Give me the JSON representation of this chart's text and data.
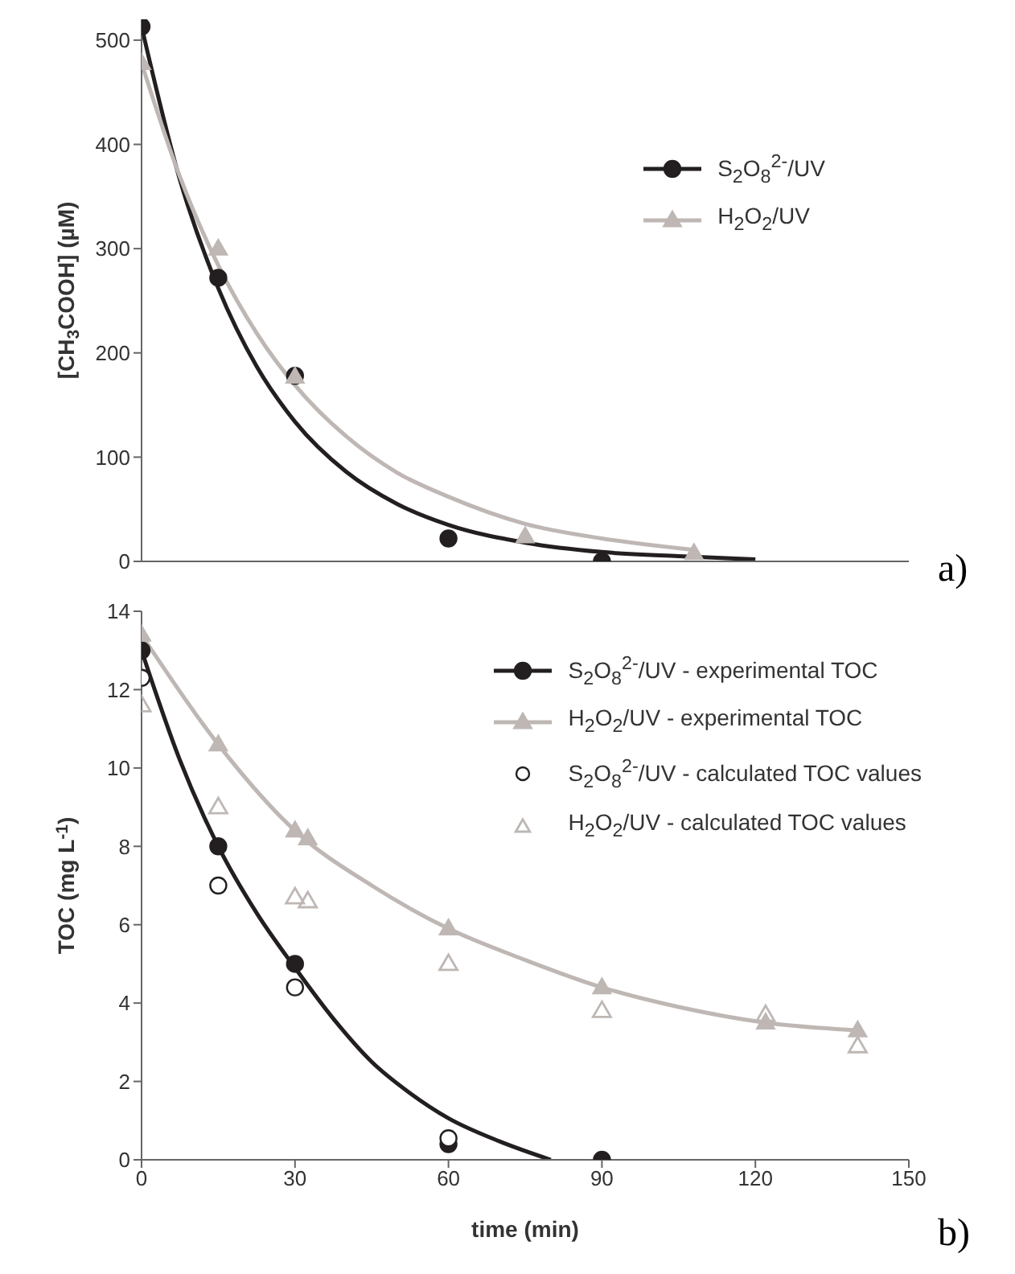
{
  "chart_data": [
    {
      "type": "scatter",
      "ylabel": "[CH$_{3}$COOH] (µM)",
      "xlim": [
        0,
        150
      ],
      "xticks": [
        0,
        30,
        60,
        90,
        120,
        150
      ],
      "ylim": [
        0,
        520
      ],
      "yticks": [
        0,
        100,
        200,
        300,
        400,
        500
      ],
      "tick_labels": "y",
      "legend": "top right",
      "annotations": [
        "a)"
      ],
      "series": [
        {
          "name": "S$_{2}$O$_{8}$$^{2-}$/UV",
          "marker": "circle",
          "color": "#231f20",
          "x": [
            0,
            15,
            30,
            60,
            90
          ],
          "values": [
            513,
            272,
            178,
            22,
            0
          ]
        },
        {
          "name": "H$_{2}$O$_{2}$/UV",
          "marker": "triangle",
          "color": "#beb7b4",
          "x": [
            0,
            15,
            30,
            75,
            108
          ],
          "values": [
            478,
            300,
            177,
            24,
            8
          ]
        },
        {
          "type": "line",
          "color": "#231f20",
          "x": [
            0,
            7.5,
            15,
            22.5,
            30,
            40,
            50,
            60,
            75,
            90,
            105,
            120
          ],
          "values": [
            513,
            366,
            262,
            187,
            134,
            86,
            55,
            35,
            18,
            9,
            5,
            2
          ]
        },
        {
          "type": "line",
          "color": "#beb7b4",
          "x": [
            0,
            7.5,
            15,
            22.5,
            30,
            40,
            50,
            60,
            75,
            90,
            108
          ],
          "values": [
            478,
            369,
            284,
            219,
            169,
            120,
            85,
            62,
            36,
            22,
            11
          ]
        }
      ]
    },
    {
      "type": "scatter",
      "xlabel": "time (min)",
      "ylabel": "TOC (mg L$^{-1}$)",
      "xlim": [
        0,
        150
      ],
      "xticks": [
        0,
        30,
        60,
        90,
        120,
        150
      ],
      "ylim": [
        0,
        14
      ],
      "yticks": [
        0,
        2,
        4,
        6,
        8,
        10,
        12,
        14
      ],
      "legend": "top right",
      "annotations": [
        "b)"
      ],
      "series": [
        {
          "name": "S$_{2}$O$_{8}$$^{2-}$/UV - experimental TOC",
          "marker": "circle",
          "color": "#231f20",
          "x": [
            0,
            15,
            30,
            60,
            90
          ],
          "values": [
            13,
            8,
            5,
            0.4,
            0
          ]
        },
        {
          "name": "H$_{2}$O$_{2}$/UV - experimental TOC",
          "marker": "triangle",
          "color": "#beb7b4",
          "x": [
            0,
            15,
            30,
            32.5,
            60,
            90,
            122,
            140
          ],
          "values": [
            13.4,
            10.6,
            8.4,
            8.2,
            5.9,
            4.4,
            3.5,
            3.3
          ]
        },
        {
          "name": "S$_{2}$O$_{8}$$^{2-}$/UV - calculated TOC values",
          "marker": "circle",
          "color": "#231f20",
          "x": [
            0,
            15,
            30,
            60
          ],
          "values": [
            12.3,
            7,
            4.4,
            0.55
          ]
        },
        {
          "name": "H$_{2}$O$_{2}$/UV - calculated TOC values",
          "marker": "triangle",
          "color": "#beb7b4",
          "x": [
            0,
            15,
            30,
            32.5,
            60,
            90,
            122,
            140
          ],
          "values": [
            11.6,
            9,
            6.7,
            6.6,
            5,
            3.8,
            3.7,
            2.9
          ]
        },
        {
          "type": "line",
          "color": "#231f20",
          "x": [
            0,
            7.5,
            15,
            22.5,
            30,
            37.5,
            45,
            52.5,
            60,
            70,
            80
          ],
          "values": [
            13,
            10.2,
            8,
            6.3,
            4.9,
            3.6,
            2.5,
            1.7,
            1.06,
            0.47,
            0
          ]
        },
        {
          "type": "line",
          "color": "#beb7b4",
          "x": [
            0,
            15,
            30,
            45,
            60,
            75,
            90,
            105,
            122,
            140
          ],
          "values": [
            13.4,
            10.6,
            8.4,
            7,
            5.9,
            5.1,
            4.4,
            3.9,
            3.5,
            3.3
          ]
        }
      ]
    }
  ]
}
